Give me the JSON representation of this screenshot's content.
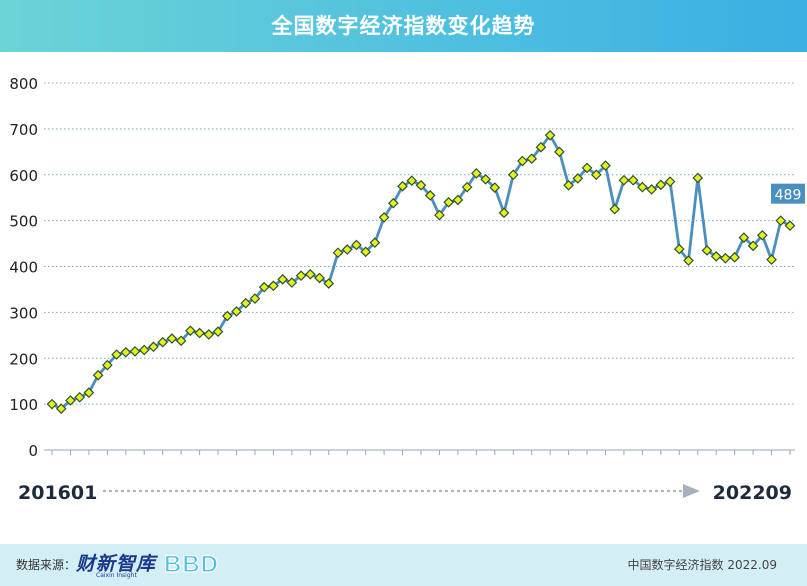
{
  "header": {
    "title": "全国数字经济指数变化趋势"
  },
  "chart_data": {
    "type": "line",
    "title": "全国数字经济指数变化趋势",
    "ylim": [
      0,
      800
    ],
    "yticks": [
      0,
      100,
      200,
      300,
      400,
      500,
      600,
      700,
      800
    ],
    "x_start_label": "201601",
    "x_end_label": "202209",
    "grid": true,
    "line_color": "#4a8fbf",
    "marker_color": "#e6f01e",
    "last_value_label": "489",
    "series": [
      {
        "values": [
          100,
          90,
          108,
          115,
          125,
          163,
          185,
          208,
          213,
          215,
          218,
          225,
          235,
          243,
          238,
          260,
          255,
          252,
          258,
          292,
          302,
          320,
          330,
          355,
          358,
          372,
          365,
          380,
          383,
          375,
          363,
          430,
          437,
          447,
          432,
          452,
          507,
          538,
          575,
          587,
          577,
          555,
          512,
          540,
          545,
          573,
          603,
          590,
          572,
          517,
          600,
          630,
          635,
          660,
          686,
          650,
          577,
          592,
          615,
          600,
          620,
          525,
          588,
          588,
          573,
          568,
          578,
          585,
          438,
          413,
          593,
          435,
          422,
          418,
          420,
          463,
          445,
          468,
          415,
          500,
          489
        ]
      }
    ]
  },
  "footer": {
    "source_label": "数据来源：",
    "logo1": "财新智库",
    "logo1_sub": "Caixin Insight",
    "logo2": "BBD",
    "right_note": "中国数字经济指数 2022.09"
  }
}
